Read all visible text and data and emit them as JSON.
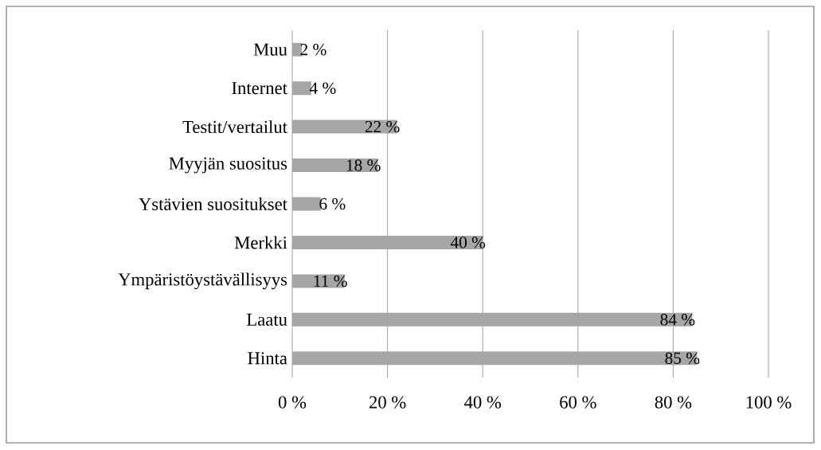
{
  "chart_data": {
    "type": "bar",
    "orientation": "horizontal",
    "categories": [
      "Muu",
      "Internet",
      "Testit/vertailut",
      "Myyjän suositus",
      "Ystävien suositukset",
      "Merkki",
      "Ympäristöystävällisyys",
      "Laatu",
      "Hinta"
    ],
    "values": [
      2,
      4,
      22,
      18,
      6,
      40,
      11,
      84,
      85
    ],
    "value_labels": [
      "2 %",
      "4 %",
      "22 %",
      "18 %",
      "6 %",
      "40 %",
      "11 %",
      "84 %",
      "85 %"
    ],
    "color": "#a6a6a6",
    "xlim": [
      0,
      100
    ],
    "xticks": [
      {
        "value": 0,
        "label": "0 %"
      },
      {
        "value": 20,
        "label": "20 %"
      },
      {
        "value": 40,
        "label": "40 %"
      },
      {
        "value": 60,
        "label": "60 %"
      },
      {
        "value": 80,
        "label": "80 %"
      },
      {
        "value": 100,
        "label": "100 %"
      }
    ],
    "grid": "x"
  }
}
